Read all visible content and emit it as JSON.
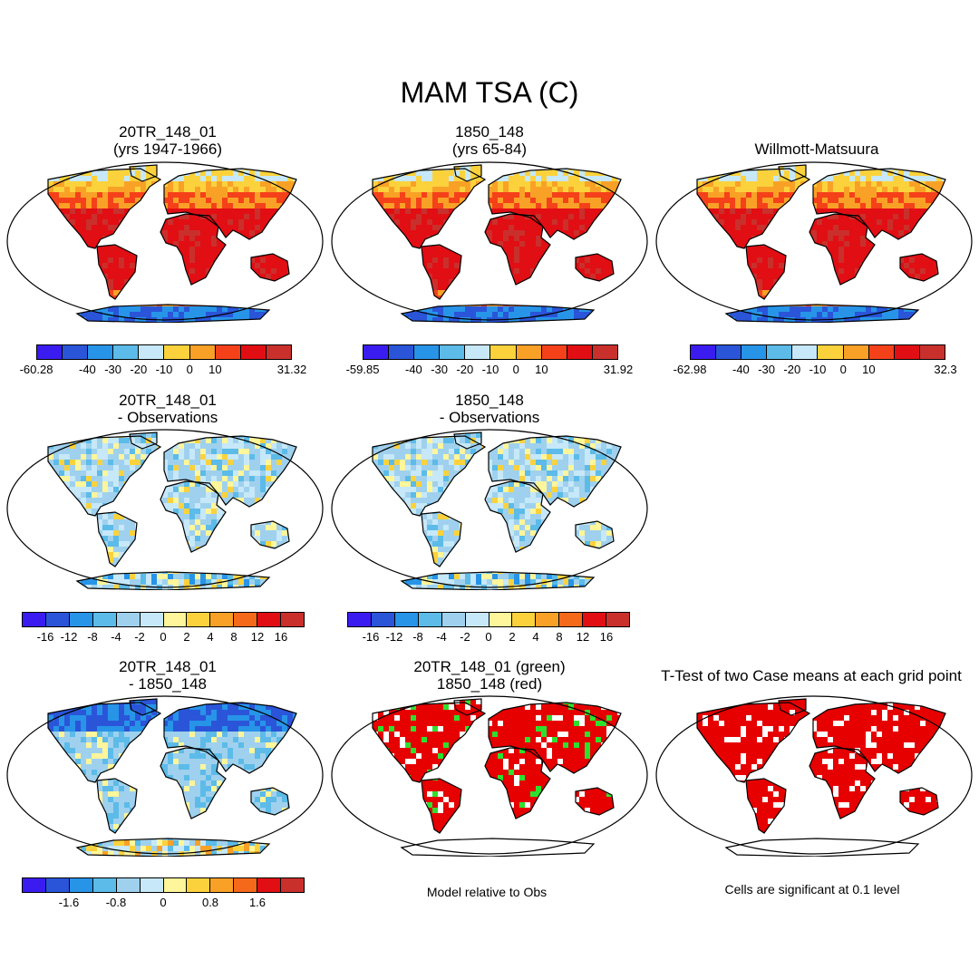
{
  "figure": {
    "title": "MAM TSA (C)"
  },
  "panels": {
    "p1": {
      "line1": "20TR_148_01",
      "line2": "(yrs 1947-1966)"
    },
    "p2": {
      "line1": "1850_148",
      "line2": "(yrs 65-84)"
    },
    "p3": {
      "line1": "Willmott-Matsuura",
      "line2": ""
    },
    "p4": {
      "line1": "20TR_148_01",
      "line2": "- Observations"
    },
    "p5": {
      "line1": "1850_148",
      "line2": "- Observations"
    },
    "p6": {
      "line1": "20TR_148_01",
      "line2": "- 1850_148"
    },
    "p7": {
      "line1": "20TR_148_01 (green)",
      "line2": "1850_148 (red)"
    },
    "p8": {
      "line1": "T-Test of two Case means at each grid point",
      "line2": ""
    }
  },
  "colorbars": {
    "abs1": {
      "labels": [
        "-60.28",
        "-40",
        "-30",
        "-20",
        "-10",
        "0",
        "10",
        "31.32"
      ]
    },
    "abs2": {
      "labels": [
        "-59.85",
        "-40",
        "-30",
        "-20",
        "-10",
        "0",
        "10",
        "31.92"
      ]
    },
    "abs3": {
      "labels": [
        "-62.98",
        "-40",
        "-30",
        "-20",
        "-10",
        "0",
        "10",
        "32.3"
      ]
    },
    "diff1": {
      "labels": [
        "-16",
        "-12",
        "-8",
        "-4",
        "-2",
        "0",
        "2",
        "4",
        "8",
        "12",
        "16"
      ]
    },
    "diff2": {
      "labels": [
        "-16",
        "-12",
        "-8",
        "-4",
        "-2",
        "0",
        "2",
        "4",
        "8",
        "12",
        "16"
      ]
    },
    "diff3": {
      "labels": [
        "-1.6",
        "-0.8",
        "0",
        "0.8",
        "1.6"
      ]
    }
  },
  "notes": {
    "model_vs_obs": "Model relative to Obs",
    "significance": "Cells are significant at 0.1 level"
  },
  "palettes": {
    "abs": [
      "#3b1cf0",
      "#2a55d9",
      "#2794e8",
      "#5cbbe8",
      "#c6e8f8",
      "#fcd23c",
      "#f9a126",
      "#f5411a",
      "#e10e14",
      "#c9302c"
    ],
    "diff": [
      "#3b1cf0",
      "#2a55d9",
      "#2794e8",
      "#5cbbe8",
      "#9fd1ee",
      "#c6e8f8",
      "#fff59a",
      "#fcd23c",
      "#f9a126",
      "#f5691a",
      "#e10e14",
      "#c9302c"
    ],
    "ocean": "#ffffff",
    "green": "#2ee02e",
    "red": "#e60000"
  }
}
